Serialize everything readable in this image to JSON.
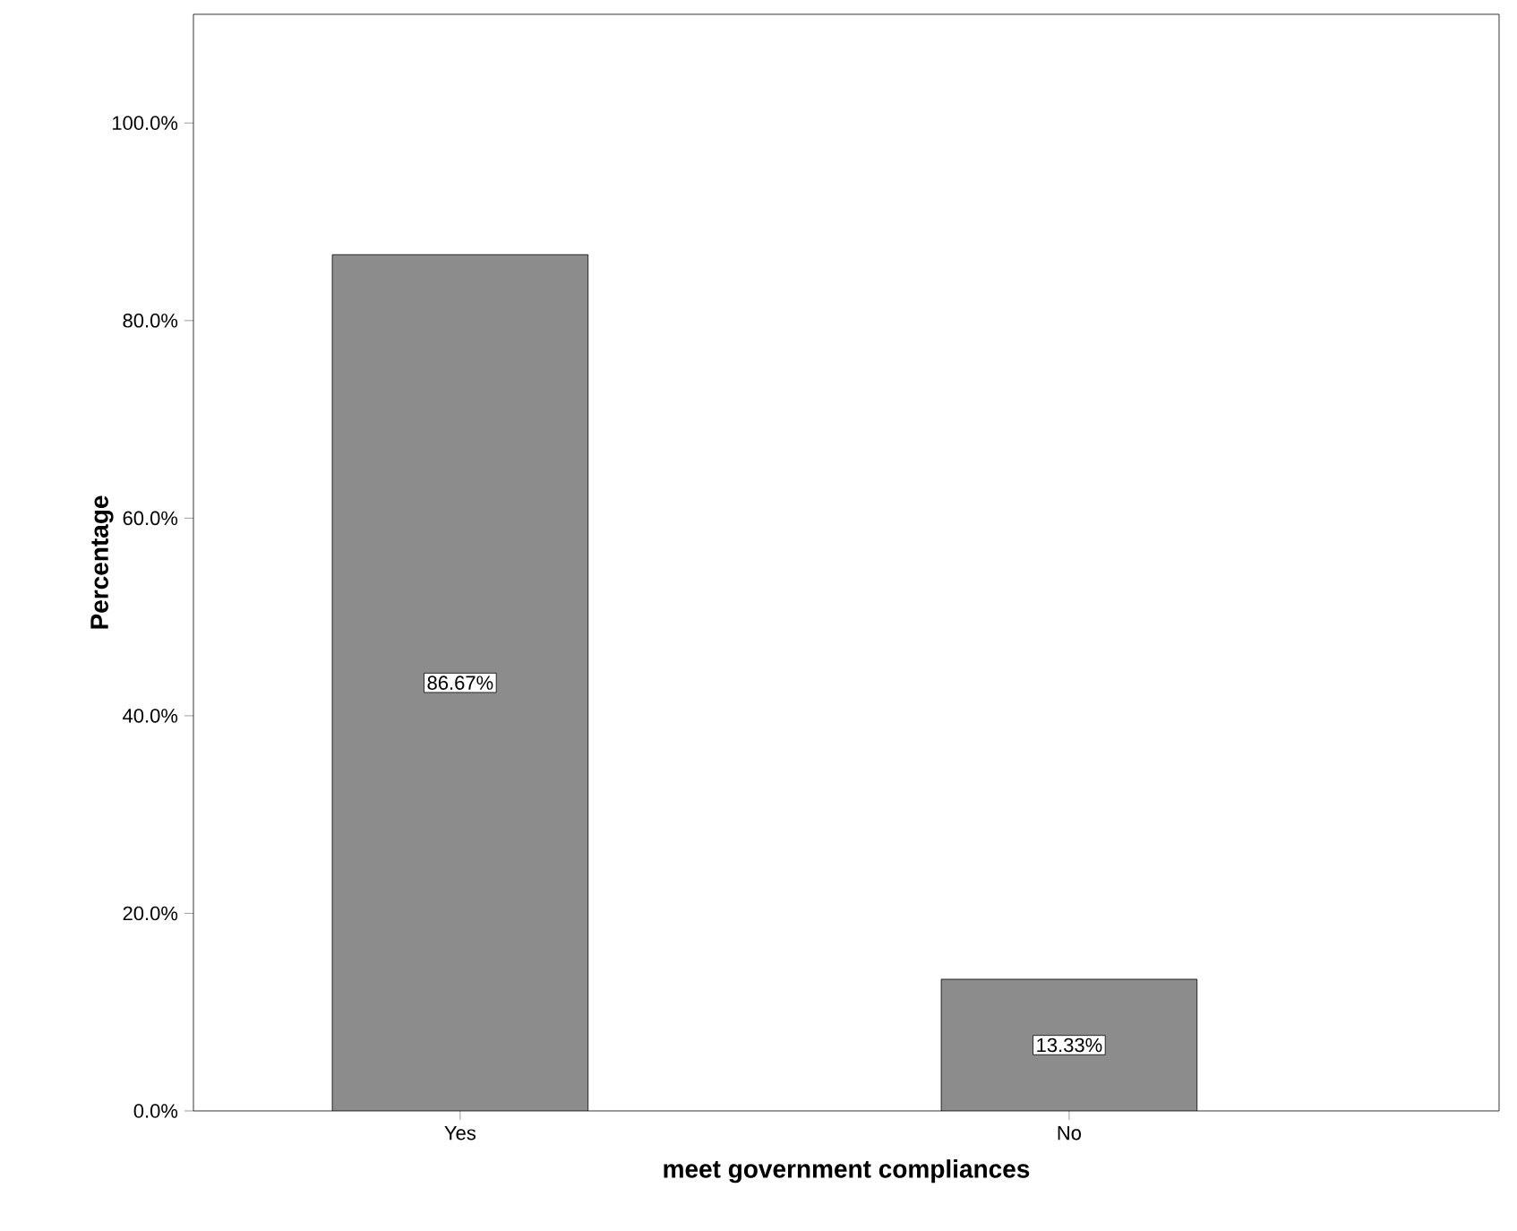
{
  "chart_data": {
    "type": "bar",
    "xlabel": "meet government compliances",
    "ylabel": "Percentage",
    "categories": [
      "Yes",
      "No"
    ],
    "values": [
      86.67,
      13.33
    ],
    "color": "#8c8c8c",
    "value_labels": [
      "86.67%",
      "13.33%"
    ],
    "ylim": [
      0,
      111
    ],
    "yticks": [
      {
        "value": 0,
        "label": "0.0%"
      },
      {
        "value": 20,
        "label": "20.0%"
      },
      {
        "value": 40,
        "label": "40.0%"
      },
      {
        "value": 60,
        "label": "60.0%"
      },
      {
        "value": 80,
        "label": "80.0%"
      },
      {
        "value": 100,
        "label": "100.0%"
      }
    ],
    "grid": false
  }
}
